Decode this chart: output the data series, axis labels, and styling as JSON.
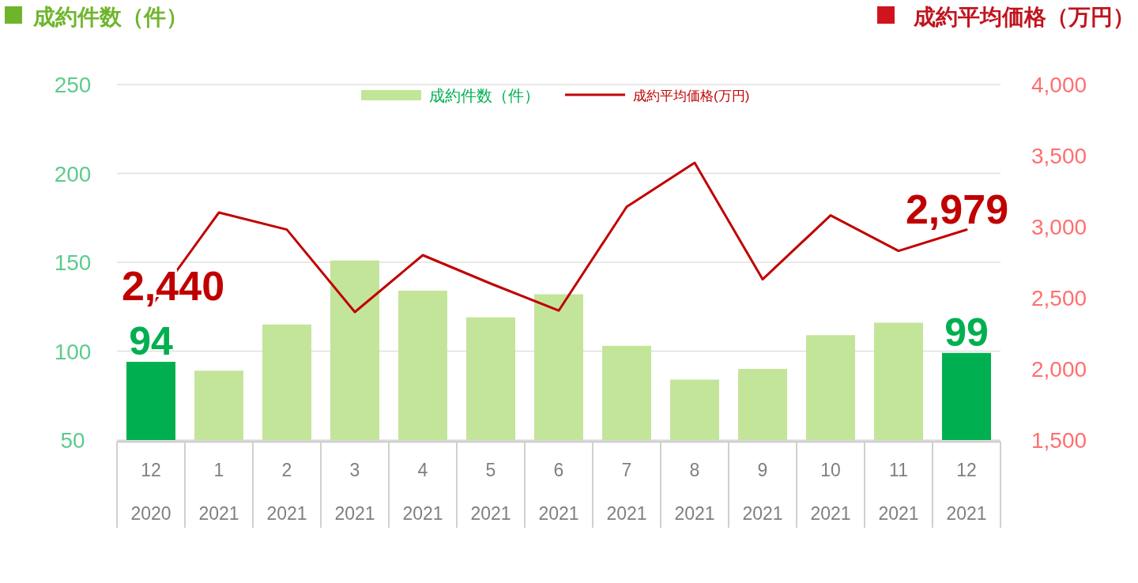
{
  "chart_data": {
    "type": "bar",
    "ylabel": "成約件数（件）",
    "y2label": "成約平均価格（万円）",
    "categories": [
      "12\n2020",
      "1\n2021",
      "2\n2021",
      "3\n2021",
      "4\n2021",
      "5\n2021",
      "6\n2021",
      "7\n2021",
      "8\n2021",
      "9\n2021",
      "10\n2021",
      "11\n2021",
      "12\n2021"
    ],
    "series": [
      {
        "name": "成約件数（件）",
        "color": "#c3e59a",
        "colors": [
          "#00b050",
          "#c3e59a",
          "#c3e59a",
          "#c3e59a",
          "#c3e59a",
          "#c3e59a",
          "#c3e59a",
          "#c3e59a",
          "#c3e59a",
          "#c3e59a",
          "#c3e59a",
          "#c3e59a",
          "#00b050"
        ],
        "values": [
          94,
          89,
          115,
          151,
          134,
          119,
          132,
          103,
          84,
          90,
          109,
          116,
          99
        ],
        "value_labels": [
          "94",
          null,
          null,
          null,
          null,
          null,
          null,
          null,
          null,
          null,
          null,
          null,
          "99"
        ]
      },
      {
        "name": "成約平均価格(万円)",
        "type": "line",
        "axis": "y2",
        "color": "#c00000",
        "values": [
          2440,
          3100,
          2980,
          2400,
          2800,
          2600,
          2410,
          3140,
          3450,
          2630,
          3080,
          2830,
          2979
        ],
        "value_labels": [
          "2,440",
          null,
          null,
          null,
          null,
          null,
          null,
          null,
          null,
          null,
          null,
          null,
          "2,979"
        ]
      }
    ],
    "ylim": [
      50,
      250
    ],
    "yticks": [
      50,
      100,
      150,
      200,
      250
    ],
    "y2lim": [
      1500,
      4000
    ],
    "y2ticks": [
      {
        "value": 1500,
        "label": "1,500"
      },
      {
        "value": 2000,
        "label": "2,000"
      },
      {
        "value": 2500,
        "label": "2,500"
      },
      {
        "value": 3000,
        "label": "3,000"
      },
      {
        "value": 3500,
        "label": "3,500"
      },
      {
        "value": 4000,
        "label": "4,000"
      }
    ],
    "grid": "y",
    "legend": "top"
  }
}
